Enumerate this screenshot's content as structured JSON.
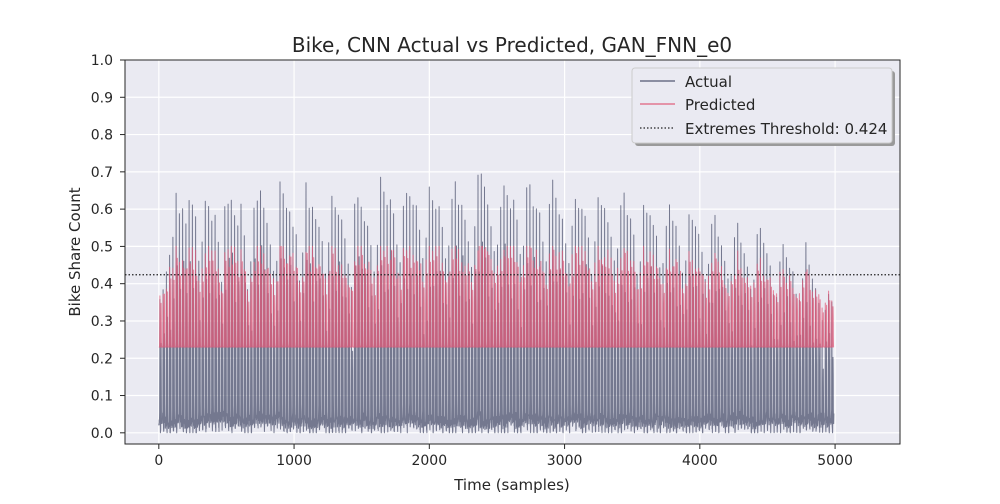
{
  "chart_data": {
    "type": "line",
    "title": "Bike, CNN Actual vs Predicted, GAN_FNN_e0",
    "xlabel": "Time (samples)",
    "ylabel": "Bike Share Count",
    "xlim": [
      -250,
      5480
    ],
    "ylim": [
      -0.03,
      1.0
    ],
    "xticks": [
      0,
      1000,
      2000,
      3000,
      4000,
      5000
    ],
    "yticks": [
      0.0,
      0.1,
      0.2,
      0.3,
      0.4,
      0.5,
      0.6,
      0.7,
      0.8,
      0.9,
      1.0
    ],
    "xtick_labels": [
      "0",
      "1000",
      "2000",
      "3000",
      "4000",
      "5000"
    ],
    "ytick_labels": [
      "0.0",
      "0.1",
      "0.2",
      "0.3",
      "0.4",
      "0.5",
      "0.6",
      "0.7",
      "0.8",
      "0.9",
      "1.0"
    ],
    "grid": true,
    "legend_position": "top-right",
    "threshold": 0.424,
    "period_samples": 24,
    "actual_daily_peaks": [
      0.35,
      0.38,
      0.42,
      0.47,
      0.52,
      0.63,
      0.58,
      0.6,
      0.55,
      0.62,
      0.6,
      0.57,
      0.45,
      0.5,
      0.62,
      0.6,
      0.56,
      0.58,
      0.5,
      0.4,
      0.6,
      0.6,
      0.62,
      0.58,
      0.55,
      0.6,
      0.52,
      0.38,
      0.45,
      0.6,
      0.62,
      0.64,
      0.6,
      0.56,
      0.5,
      0.42,
      0.45,
      0.66,
      0.63,
      0.6,
      0.58,
      0.55,
      0.52,
      0.4,
      0.48,
      0.67,
      0.6,
      0.6,
      0.57,
      0.55,
      0.5,
      0.42,
      0.5,
      0.63,
      0.6,
      0.58,
      0.56,
      0.52,
      0.45,
      0.38,
      0.6,
      0.62,
      0.6,
      0.56,
      0.55,
      0.5,
      0.42,
      0.5,
      0.68,
      0.64,
      0.6,
      0.62,
      0.58,
      0.5,
      0.45,
      0.6,
      0.64,
      0.62,
      0.6,
      0.6,
      0.54,
      0.46,
      0.52,
      0.65,
      0.62,
      0.6,
      0.6,
      0.55,
      0.46,
      0.5,
      0.62,
      0.66,
      0.6,
      0.6,
      0.56,
      0.5,
      0.44,
      0.55,
      0.68,
      0.69,
      0.65,
      0.6,
      0.55,
      0.48,
      0.5,
      0.6,
      0.65,
      0.63,
      0.6,
      0.62,
      0.56,
      0.47,
      0.5,
      0.65,
      0.66,
      0.6,
      0.6,
      0.58,
      0.5,
      0.45,
      0.6,
      0.67,
      0.62,
      0.58,
      0.56,
      0.5,
      0.45,
      0.55,
      0.62,
      0.6,
      0.6,
      0.57,
      0.52,
      0.42,
      0.5,
      0.62,
      0.6,
      0.6,
      0.56,
      0.52,
      0.45,
      0.48,
      0.6,
      0.64,
      0.58,
      0.56,
      0.52,
      0.42,
      0.45,
      0.6,
      0.58,
      0.57,
      0.55,
      0.52,
      0.44,
      0.45,
      0.55,
      0.6,
      0.56,
      0.55,
      0.5,
      0.42,
      0.45,
      0.58,
      0.56,
      0.55,
      0.52,
      0.48,
      0.4,
      0.45,
      0.55,
      0.57,
      0.52,
      0.5,
      0.46,
      0.4,
      0.42,
      0.52,
      0.56,
      0.5,
      0.48,
      0.44,
      0.38,
      0.4,
      0.52,
      0.54,
      0.5,
      0.48,
      0.44,
      0.37,
      0.36,
      0.45,
      0.5,
      0.46,
      0.44,
      0.42,
      0.36,
      0.35,
      0.4,
      0.51,
      0.44,
      0.4,
      0.38,
      0.34,
      0.3,
      0.32,
      0.37,
      0.34
    ],
    "series": [
      {
        "name": "Actual",
        "color": "#4c516d",
        "opacity": 0.75
      },
      {
        "name": "Predicted",
        "color": "#e05a78",
        "opacity": 0.75
      },
      {
        "name": "Extremes Threshold: 0.424",
        "color": "#222222",
        "style": "dotted"
      }
    ]
  }
}
